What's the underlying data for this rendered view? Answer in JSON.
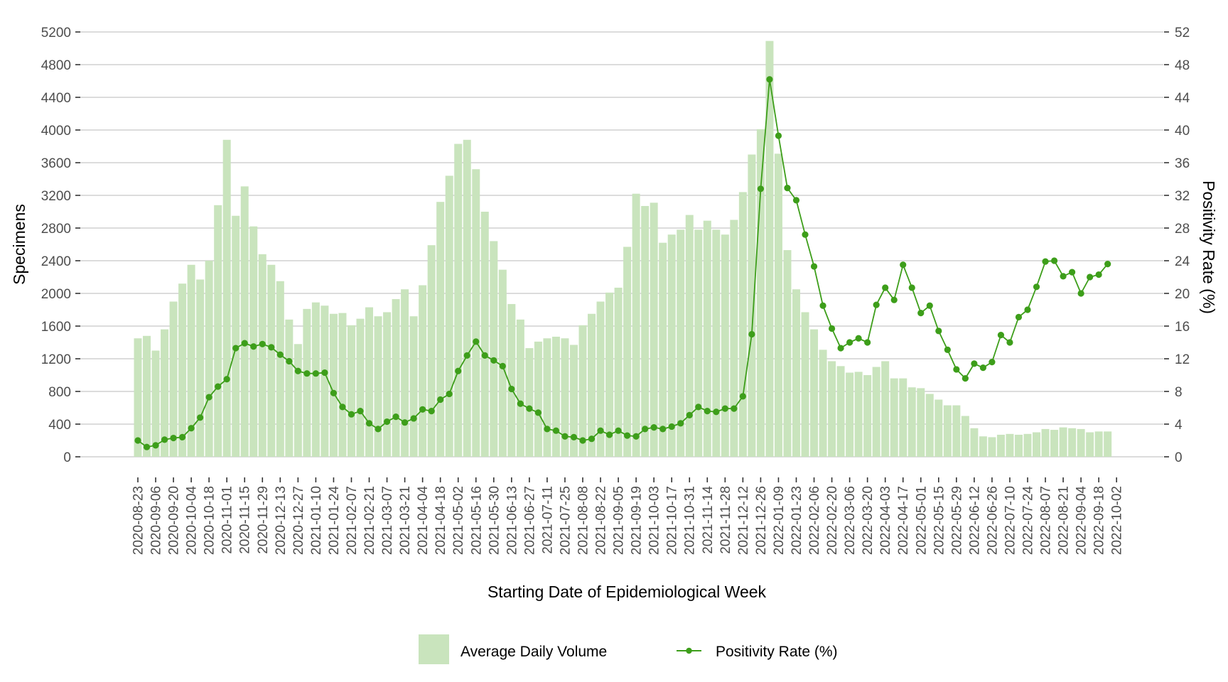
{
  "chart_data": {
    "type": "bar+line",
    "title": "",
    "xlabel": "Starting Date of Epidemiological Week",
    "ylabel": "Specimens",
    "y2label": "Positivity Rate (%)",
    "ylim": [
      0,
      5200
    ],
    "y2lim": [
      0,
      52
    ],
    "yticks": [
      0,
      400,
      800,
      1200,
      1600,
      2000,
      2400,
      2800,
      3200,
      3600,
      4000,
      4400,
      4800,
      5200
    ],
    "y2ticks": [
      0,
      4,
      8,
      12,
      16,
      20,
      24,
      28,
      32,
      36,
      40,
      44,
      48,
      52
    ],
    "xtick_labels": [
      "2020-08-23",
      "2020-09-06",
      "2020-09-20",
      "2020-10-04",
      "2020-10-18",
      "2020-11-01",
      "2020-11-15",
      "2020-11-29",
      "2020-12-13",
      "2020-12-27",
      "2021-01-10",
      "2021-01-24",
      "2021-02-07",
      "2021-02-21",
      "2021-03-07",
      "2021-03-21",
      "2021-04-04",
      "2021-04-18",
      "2021-05-02",
      "2021-05-16",
      "2021-05-30",
      "2021-06-13",
      "2021-06-27",
      "2021-07-11",
      "2021-07-25",
      "2021-08-08",
      "2021-08-22",
      "2021-09-05",
      "2021-09-19",
      "2021-10-03",
      "2021-10-17",
      "2021-10-31",
      "2021-11-14",
      "2021-11-28",
      "2021-12-12",
      "2021-12-26",
      "2022-01-09",
      "2022-01-23",
      "2022-02-06",
      "2022-02-20",
      "2022-03-06",
      "2022-03-20",
      "2022-04-03",
      "2022-04-17",
      "2022-05-01",
      "2022-05-15",
      "2022-05-29",
      "2022-06-12",
      "2022-06-26",
      "2022-07-10",
      "2022-07-24",
      "2022-08-07",
      "2022-08-21",
      "2022-09-04",
      "2022-09-18",
      "2022-10-02"
    ],
    "grid": true,
    "legend_position": "bottom",
    "colors": {
      "bars": "#c9e4bd",
      "line": "#3d9e1a",
      "grid": "#d0d0d0",
      "tick_text": "#4d4d4d"
    },
    "series": [
      {
        "name": "Average Daily Volume",
        "type": "bar",
        "axis": "left",
        "values": [
          1450,
          1480,
          1300,
          1560,
          1900,
          2120,
          2350,
          2170,
          2400,
          3080,
          3880,
          2950,
          3310,
          2820,
          2480,
          2350,
          2150,
          1680,
          1380,
          1810,
          1890,
          1850,
          1750,
          1760,
          1610,
          1690,
          1830,
          1720,
          1770,
          1930,
          2050,
          1720,
          2100,
          2590,
          3120,
          3440,
          3830,
          3880,
          3520,
          3000,
          2640,
          2290,
          1870,
          1680,
          1330,
          1410,
          1450,
          1470,
          1450,
          1370,
          1610,
          1750,
          1900,
          2010,
          2070,
          2570,
          3220,
          3070,
          3110,
          2620,
          2720,
          2780,
          2960,
          2780,
          2890,
          2780,
          2720,
          2900,
          3240,
          3700,
          4010,
          5090,
          3710,
          2530,
          2050,
          1770,
          1560,
          1310,
          1170,
          1110,
          1030,
          1040,
          1000,
          1100,
          1170,
          960,
          960,
          850,
          840,
          770,
          700,
          630,
          630,
          500,
          350,
          250,
          240,
          270,
          280,
          270,
          280,
          300,
          340,
          330,
          360,
          350,
          340,
          300,
          310,
          310
        ]
      },
      {
        "name": "Positivity Rate (%)",
        "type": "line",
        "axis": "right",
        "values": [
          2.0,
          1.2,
          1.4,
          2.1,
          2.3,
          2.4,
          3.5,
          4.8,
          7.3,
          8.6,
          9.5,
          13.3,
          13.9,
          13.5,
          13.8,
          13.4,
          12.5,
          11.7,
          10.5,
          10.2,
          10.2,
          10.3,
          7.8,
          6.1,
          5.2,
          5.6,
          4.1,
          3.4,
          4.3,
          4.9,
          4.2,
          4.7,
          5.8,
          5.6,
          7.0,
          7.7,
          10.5,
          12.4,
          14.1,
          12.4,
          11.8,
          11.1,
          8.3,
          6.5,
          5.9,
          5.4,
          3.4,
          3.2,
          2.5,
          2.4,
          2.0,
          2.2,
          3.2,
          2.7,
          3.2,
          2.6,
          2.5,
          3.4,
          3.6,
          3.4,
          3.7,
          4.1,
          5.1,
          6.1,
          5.6,
          5.5,
          5.9,
          5.9,
          7.4,
          15.0,
          32.8,
          46.2,
          39.3,
          32.9,
          31.4,
          27.2,
          23.3,
          18.5,
          15.7,
          13.3,
          14.0,
          14.5,
          14.0,
          18.6,
          20.7,
          19.2,
          23.5,
          20.7,
          17.6,
          18.5,
          15.4,
          13.1,
          10.7,
          9.6,
          11.4,
          10.9,
          11.6,
          14.9,
          14.0,
          17.1,
          18.0,
          20.8,
          23.9,
          24.0,
          22.1,
          22.6,
          20.0,
          22.0,
          22.3,
          23.6
        ]
      }
    ],
    "first_week": "2020-08-23",
    "week_step_days": 7
  },
  "legend": {
    "bars_label": "Average Daily Volume",
    "line_label": "Positivity Rate (%)"
  }
}
